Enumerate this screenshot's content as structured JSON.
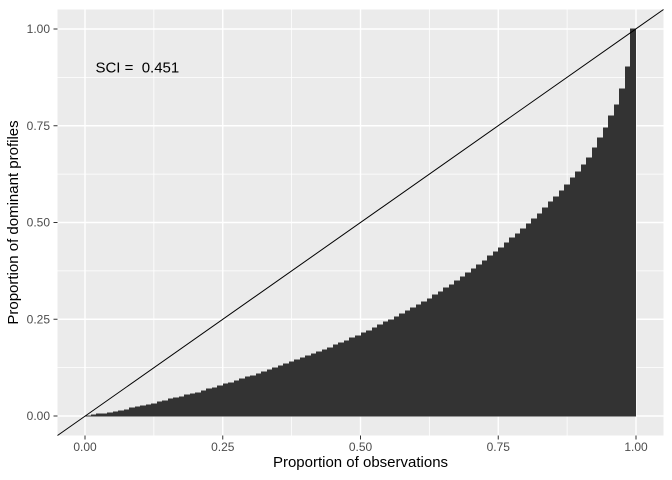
{
  "chart_data": {
    "type": "bar",
    "title": "",
    "annotation": "SCI =  0.451",
    "annotation_xy": [
      0.095,
      0.9
    ],
    "xlabel": "Proportion of observations",
    "ylabel": "Proportion of dominant profiles",
    "x_ticks": [
      0,
      0.25,
      0.5,
      0.75,
      1
    ],
    "x_tick_labels": [
      "0.00",
      "0.25",
      "0.50",
      "0.75",
      "1.00"
    ],
    "y_ticks": [
      0,
      0.25,
      0.5,
      0.75,
      1
    ],
    "y_tick_labels": [
      "0.00",
      "0.25",
      "0.50",
      "0.75",
      "1.00"
    ],
    "x_minor": [
      0.125,
      0.375,
      0.625,
      0.875
    ],
    "y_minor": [
      0.125,
      0.375,
      0.625,
      0.875
    ],
    "xlim": [
      -0.05,
      1.05
    ],
    "ylim": [
      -0.05,
      1.05
    ],
    "grid": true,
    "legend": "none",
    "n_bars": 100,
    "equality_line": {
      "slope": 1,
      "intercept": 0
    },
    "curve_points": [
      [
        0.0,
        0.0
      ],
      [
        0.02,
        0.003
      ],
      [
        0.05,
        0.01
      ],
      [
        0.08,
        0.018
      ],
      [
        0.12,
        0.03
      ],
      [
        0.16,
        0.044
      ],
      [
        0.2,
        0.058
      ],
      [
        0.24,
        0.074
      ],
      [
        0.28,
        0.092
      ],
      [
        0.32,
        0.11
      ],
      [
        0.36,
        0.13
      ],
      [
        0.4,
        0.15
      ],
      [
        0.44,
        0.172
      ],
      [
        0.48,
        0.196
      ],
      [
        0.52,
        0.222
      ],
      [
        0.56,
        0.25
      ],
      [
        0.6,
        0.28
      ],
      [
        0.64,
        0.313
      ],
      [
        0.68,
        0.35
      ],
      [
        0.72,
        0.392
      ],
      [
        0.76,
        0.436
      ],
      [
        0.8,
        0.484
      ],
      [
        0.84,
        0.538
      ],
      [
        0.88,
        0.598
      ],
      [
        0.92,
        0.668
      ],
      [
        0.95,
        0.745
      ],
      [
        0.97,
        0.806
      ],
      [
        0.985,
        0.868
      ],
      [
        0.995,
        0.94
      ],
      [
        1.0,
        1.0
      ]
    ],
    "colors": {
      "background": "#FFFFFF",
      "panel": "#EBEBEB",
      "grid_major": "#FFFFFF",
      "grid_minor": "#FFFFFF",
      "bar": "#333333",
      "equality_line": "#000000",
      "tick_mark": "#333333",
      "tick_label": "#4D4D4D",
      "axis_title": "#000000",
      "annotation": "#000000"
    }
  }
}
